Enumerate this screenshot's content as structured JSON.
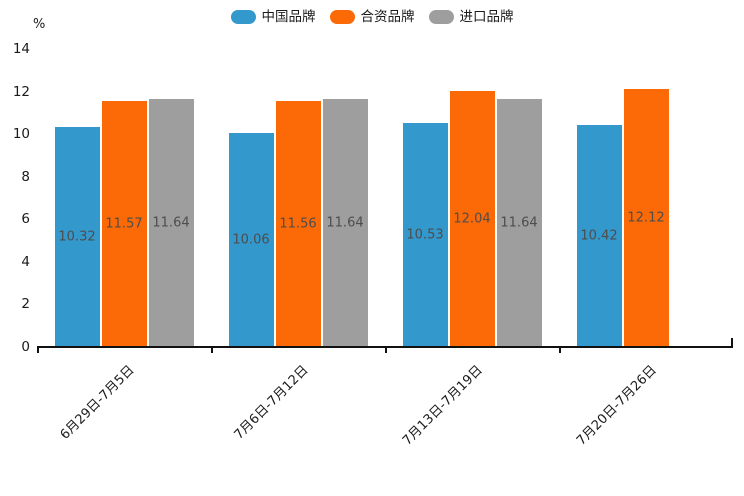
{
  "chart_data": {
    "type": "bar",
    "title": "",
    "unit_label": "%",
    "categories": [
      "6月29日-7月5日",
      "7月6日-7月12日",
      "7月13日-7月19日",
      "7月20日-7月26日"
    ],
    "series": [
      {
        "name": "中国品牌",
        "color": "#3398CC",
        "values": [
          10.32,
          10.06,
          10.53,
          10.42
        ]
      },
      {
        "name": "合资品牌",
        "color": "#FB6A06",
        "values": [
          11.57,
          11.56,
          12.04,
          12.12
        ]
      },
      {
        "name": "进口品牌",
        "color": "#9E9E9E",
        "values": [
          11.64,
          11.64,
          11.64,
          null
        ]
      }
    ],
    "ylim": [
      0,
      14
    ],
    "yticks": [
      14,
      12,
      10,
      8,
      6,
      4,
      2,
      0
    ],
    "grid": false,
    "legend_position": "top-center",
    "value_labels_shown": true,
    "value_label_decimals": 2,
    "value_label_color": "#4d4d4d",
    "axis_text_color": "#1a1a1a"
  }
}
